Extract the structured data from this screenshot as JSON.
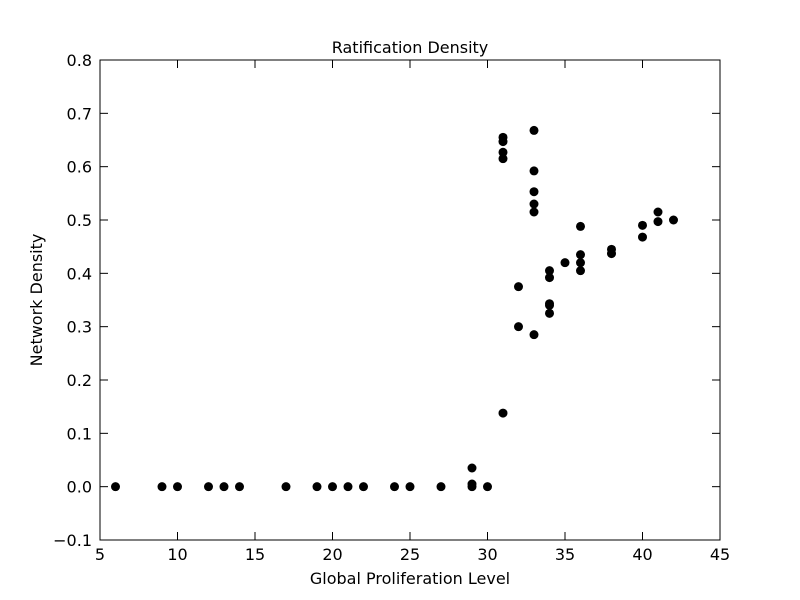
{
  "chart_data": {
    "type": "scatter",
    "title": "Ratification Density",
    "xlabel": "Global Proliferation Level",
    "ylabel": "Network Density",
    "xlim": [
      5,
      45
    ],
    "ylim": [
      -0.1,
      0.8
    ],
    "xticks": [
      5,
      10,
      15,
      20,
      25,
      30,
      35,
      40,
      45
    ],
    "xtick_labels": [
      "5",
      "10",
      "15",
      "20",
      "25",
      "30",
      "35",
      "40",
      "45"
    ],
    "yticks": [
      -0.1,
      0.0,
      0.1,
      0.2,
      0.3,
      0.4,
      0.5,
      0.6,
      0.7,
      0.8
    ],
    "ytick_labels": [
      "−0.1",
      "0.0",
      "0.1",
      "0.2",
      "0.3",
      "0.4",
      "0.5",
      "0.6",
      "0.7",
      "0.8"
    ],
    "grid": false,
    "marker_color": "#000000",
    "series": [
      {
        "points": [
          [
            6,
            0.0
          ],
          [
            9,
            0.0
          ],
          [
            10,
            0.0
          ],
          [
            12,
            0.0
          ],
          [
            13,
            0.0
          ],
          [
            14,
            0.0
          ],
          [
            17,
            0.0
          ],
          [
            19,
            0.0
          ],
          [
            20,
            0.0
          ],
          [
            21,
            0.0
          ],
          [
            22,
            0.0
          ],
          [
            24,
            0.0
          ],
          [
            25,
            0.0
          ],
          [
            27,
            0.0
          ],
          [
            29,
            0.0
          ],
          [
            29,
            0.005
          ],
          [
            29,
            0.035
          ],
          [
            30,
            0.0
          ],
          [
            31,
            0.138
          ],
          [
            31,
            0.615
          ],
          [
            31,
            0.627
          ],
          [
            31,
            0.647
          ],
          [
            31,
            0.655
          ],
          [
            32,
            0.3
          ],
          [
            32,
            0.375
          ],
          [
            33,
            0.285
          ],
          [
            33,
            0.515
          ],
          [
            33,
            0.53
          ],
          [
            33,
            0.553
          ],
          [
            33,
            0.592
          ],
          [
            33,
            0.668
          ],
          [
            34,
            0.325
          ],
          [
            34,
            0.34
          ],
          [
            34,
            0.343
          ],
          [
            34,
            0.392
          ],
          [
            34,
            0.405
          ],
          [
            35,
            0.42
          ],
          [
            36,
            0.405
          ],
          [
            36,
            0.42
          ],
          [
            36,
            0.435
          ],
          [
            36,
            0.488
          ],
          [
            38,
            0.437
          ],
          [
            38,
            0.445
          ],
          [
            40,
            0.468
          ],
          [
            40,
            0.49
          ],
          [
            41,
            0.497
          ],
          [
            41,
            0.515
          ],
          [
            42,
            0.5
          ]
        ]
      }
    ]
  }
}
